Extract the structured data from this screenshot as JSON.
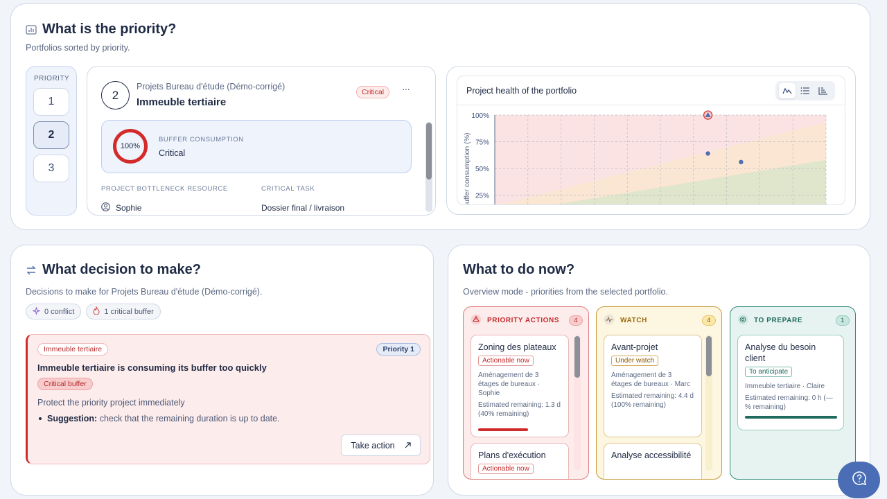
{
  "priority": {
    "title": "What is the priority?",
    "subtitle": "Portfolios sorted by priority.",
    "selector_label": "PRIORITY",
    "levels": [
      "1",
      "2",
      "3"
    ],
    "project": {
      "rank": "2",
      "portfolio": "Projets Bureau d'étude (Démo-corrigé)",
      "name": "Immeuble tertiaire",
      "status_badge": "Critical",
      "more": "···",
      "buffer_percent": "100%",
      "buffer_label": "BUFFER CONSUMPTION",
      "buffer_status": "Critical",
      "bottleneck_label": "PROJECT BOTTLENECK RESOURCE",
      "bottleneck_value": "Sophie",
      "critical_task_label": "CRITICAL TASK",
      "critical_task_value": "Dossier final / livraison"
    }
  },
  "chart_panel": {
    "title": "Project health of the portfolio",
    "view_icons": [
      "line-chart-icon",
      "list-icon",
      "bar-chart-icon"
    ],
    "colors": {
      "red_zone": "#fbe3e3",
      "orange_zone": "#fbe6d3",
      "green_zone": "#dfe6cc",
      "point": "#4f6fb0",
      "alert": "#d03b3b"
    }
  },
  "chart_data": {
    "type": "scatter",
    "ylabel": "Buffer consumption (%)",
    "yticks": [
      "100%",
      "75%",
      "50%",
      "25%"
    ],
    "ylim": [
      15,
      100
    ],
    "xlim": [
      0,
      100
    ],
    "series": [
      {
        "values": [
          {
            "x": 61,
            "y": 100
          },
          {
            "x": 61,
            "y": 64
          },
          {
            "x": 71,
            "y": 56
          }
        ]
      }
    ]
  },
  "decision": {
    "title": "What decision to make?",
    "subtitle": "Decisions to make for Projets Bureau d'étude (Démo-corrigé).",
    "chips": [
      "0 conflict",
      "1 critical buffer"
    ],
    "item": {
      "project_tag": "Immeuble tertiaire",
      "priority_tag": "Priority 1",
      "headline": "Immeuble tertiaire is consuming its buffer too quickly",
      "buffer_tag": "Critical buffer",
      "body": "Protect the priority project immediately",
      "suggestion_label": "Suggestion:",
      "suggestion_text": "check that the remaining duration is up to date.",
      "action_label": "Take action"
    }
  },
  "todo": {
    "title": "What to do now?",
    "subtitle": "Overview mode - priorities from the selected portfolio.",
    "columns": [
      {
        "label": "PRIORITY ACTIONS",
        "count": "4",
        "tasks": [
          {
            "title": "Zoning des plateaux",
            "tag": "Actionable now",
            "desc": "Aménagement de 3 étages de bureaux · Sophie",
            "remaining": "Estimated remaining: 1.3 d (40% remaining)",
            "progress": 0.6
          },
          {
            "title": "Plans d'exécution",
            "tag": "Actionable now"
          }
        ]
      },
      {
        "label": "WATCH",
        "count": "4",
        "tasks": [
          {
            "title": "Avant-projet",
            "tag": "Under watch",
            "desc": "Aménagement de 3 étages de bureaux · Marc",
            "remaining": "Estimated remaining: 4.4 d (100% remaining)"
          },
          {
            "title": "Analyse accessibilité"
          }
        ]
      },
      {
        "label": "TO PREPARE",
        "count": "1",
        "tasks": [
          {
            "title": "Analyse du besoin client",
            "tag": "To anticipate",
            "desc": "Immeuble tertiaire · Claire",
            "remaining": "Estimated remaining: 0 h (— % remaining)",
            "progress": 1.0
          }
        ]
      }
    ]
  }
}
